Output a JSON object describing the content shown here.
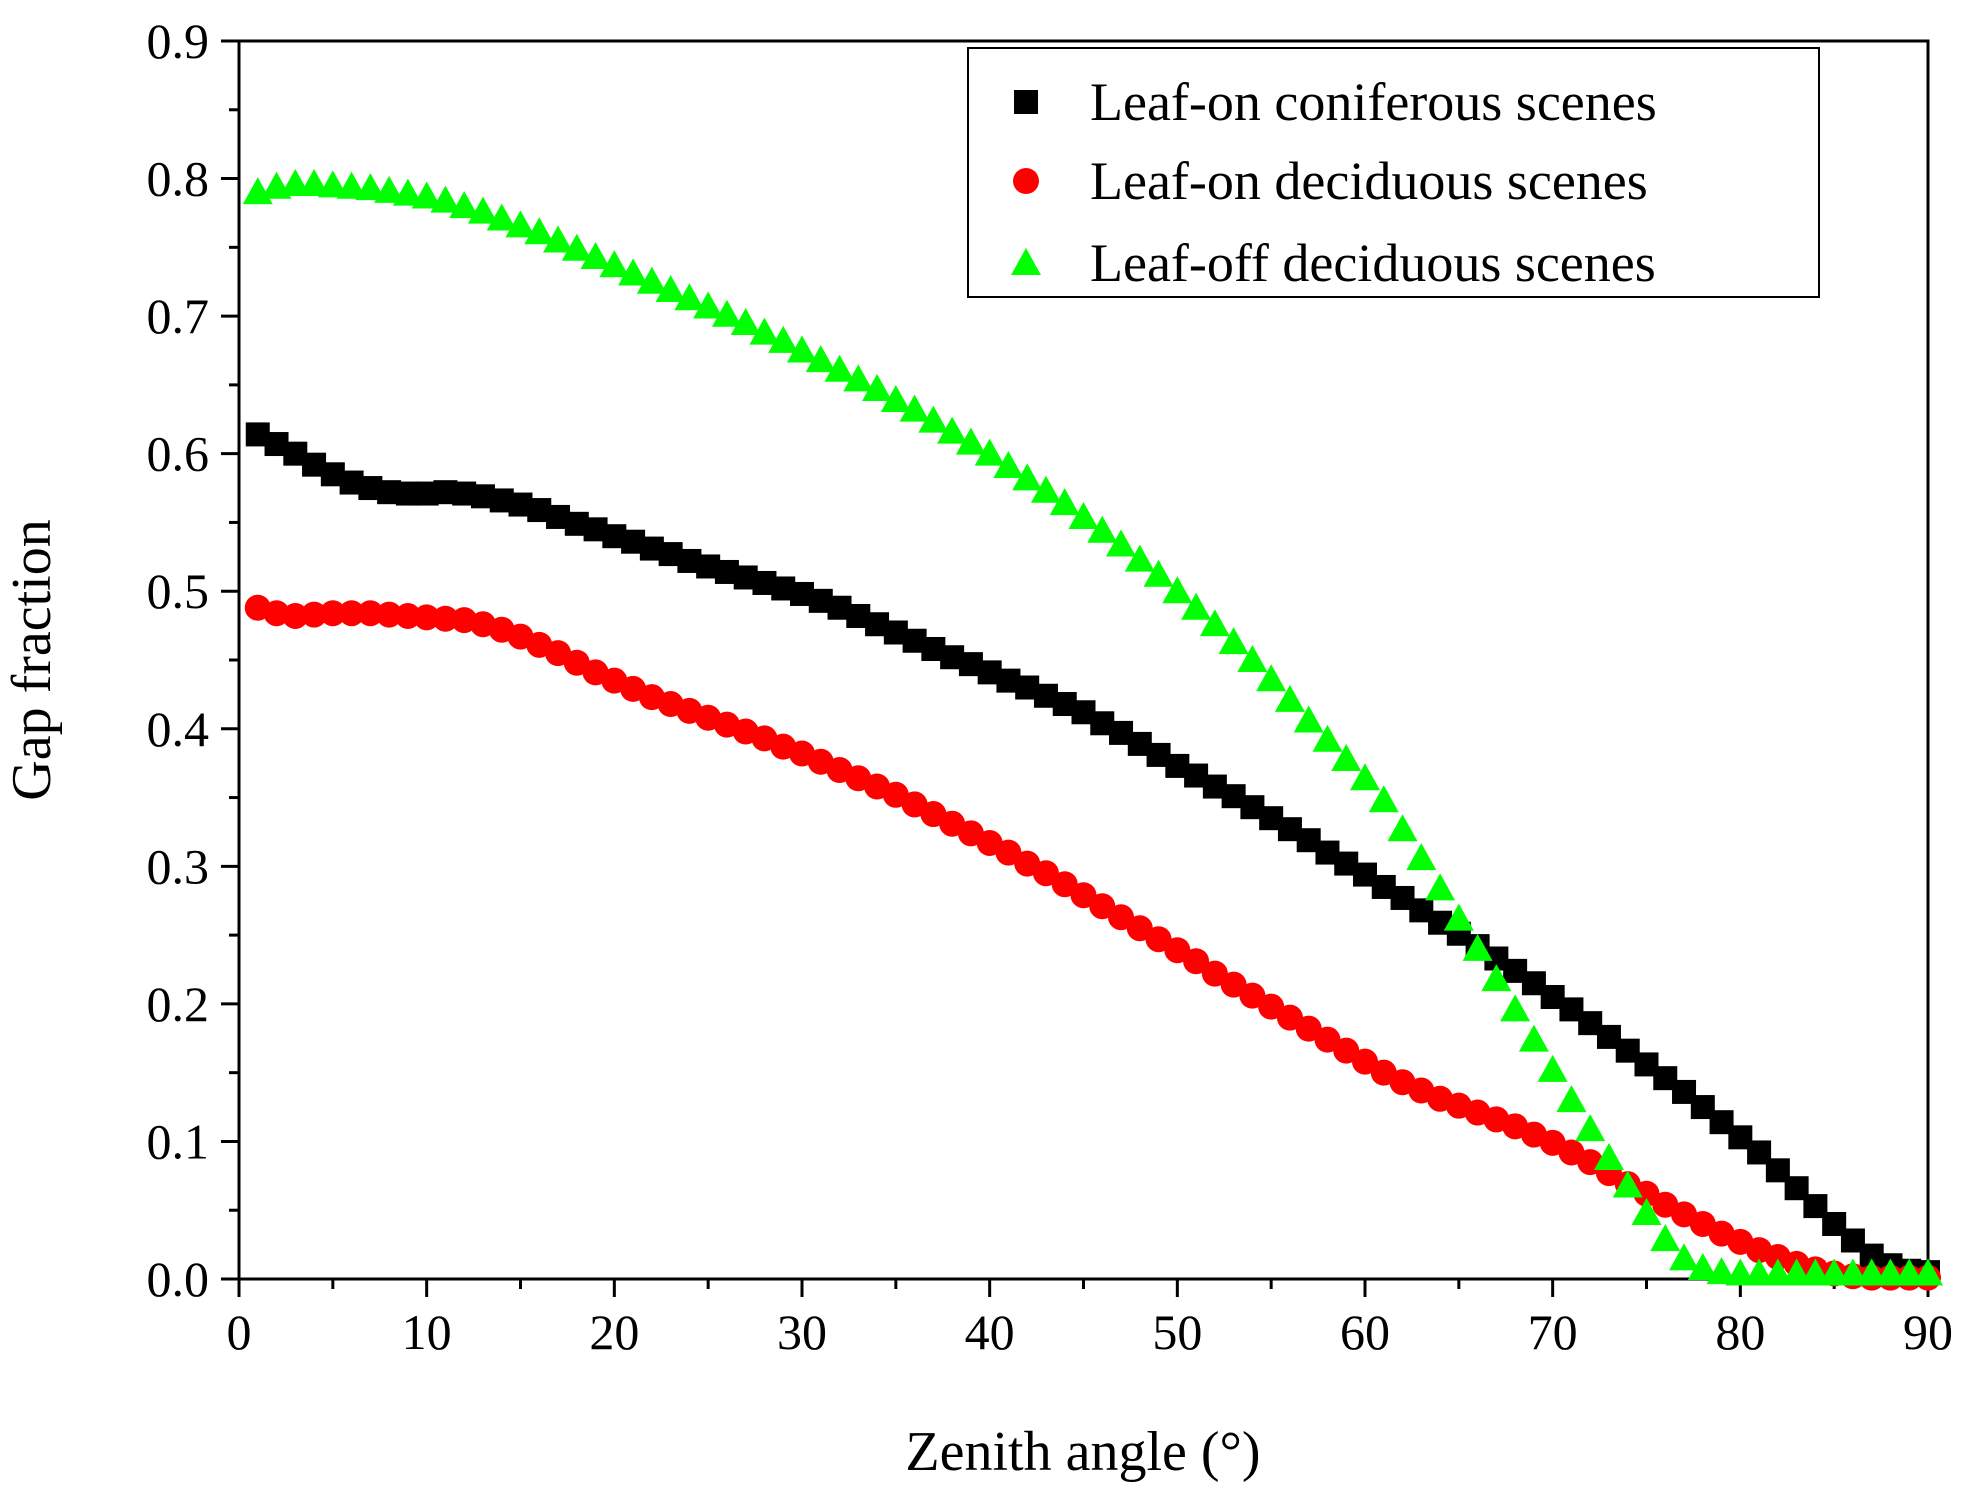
{
  "chart_data": {
    "type": "scatter",
    "title": "",
    "xlabel": "Zenith angle (°)",
    "ylabel": "Gap fraction",
    "xlim": [
      0,
      90
    ],
    "ylim": [
      0,
      0.9
    ],
    "xticks": [
      "0",
      "10",
      "20",
      "30",
      "40",
      "50",
      "60",
      "70",
      "80",
      "90"
    ],
    "yticks": [
      "0.0",
      "0.1",
      "0.2",
      "0.3",
      "0.4",
      "0.5",
      "0.6",
      "0.7",
      "0.8",
      "0.9"
    ],
    "grid": false,
    "legend_position": "top-right",
    "x": [
      1,
      2,
      3,
      4,
      5,
      6,
      7,
      8,
      9,
      10,
      11,
      12,
      13,
      14,
      15,
      16,
      17,
      18,
      19,
      20,
      21,
      22,
      23,
      24,
      25,
      26,
      27,
      28,
      29,
      30,
      31,
      32,
      33,
      34,
      35,
      36,
      37,
      38,
      39,
      40,
      41,
      42,
      43,
      44,
      45,
      46,
      47,
      48,
      49,
      50,
      51,
      52,
      53,
      54,
      55,
      56,
      57,
      58,
      59,
      60,
      61,
      62,
      63,
      64,
      65,
      66,
      67,
      68,
      69,
      70,
      71,
      72,
      73,
      74,
      75,
      76,
      77,
      78,
      79,
      80,
      81,
      82,
      83,
      84,
      85,
      86,
      87,
      88,
      89,
      90
    ],
    "series": [
      {
        "name": "Leaf-on coniferous scenes",
        "marker": "square",
        "color": "#000000",
        "values": [
          0.614,
          0.607,
          0.6,
          0.592,
          0.585,
          0.579,
          0.575,
          0.572,
          0.571,
          0.571,
          0.572,
          0.571,
          0.569,
          0.566,
          0.563,
          0.559,
          0.554,
          0.549,
          0.545,
          0.54,
          0.536,
          0.531,
          0.527,
          0.522,
          0.518,
          0.514,
          0.51,
          0.506,
          0.502,
          0.498,
          0.493,
          0.488,
          0.482,
          0.476,
          0.47,
          0.464,
          0.458,
          0.452,
          0.447,
          0.441,
          0.435,
          0.43,
          0.424,
          0.418,
          0.412,
          0.404,
          0.397,
          0.389,
          0.381,
          0.373,
          0.366,
          0.358,
          0.351,
          0.343,
          0.335,
          0.327,
          0.319,
          0.31,
          0.302,
          0.294,
          0.285,
          0.277,
          0.268,
          0.259,
          0.251,
          0.242,
          0.233,
          0.224,
          0.215,
          0.205,
          0.196,
          0.186,
          0.176,
          0.166,
          0.156,
          0.146,
          0.136,
          0.125,
          0.114,
          0.103,
          0.092,
          0.079,
          0.066,
          0.053,
          0.04,
          0.028,
          0.017,
          0.01,
          0.006,
          0.005
        ]
      },
      {
        "name": "Leaf-on deciduous scenes",
        "marker": "circle",
        "color": "#ff0000",
        "values": [
          0.488,
          0.484,
          0.482,
          0.483,
          0.484,
          0.484,
          0.484,
          0.483,
          0.482,
          0.481,
          0.48,
          0.479,
          0.476,
          0.472,
          0.467,
          0.461,
          0.455,
          0.448,
          0.441,
          0.435,
          0.429,
          0.423,
          0.418,
          0.413,
          0.408,
          0.403,
          0.398,
          0.393,
          0.387,
          0.382,
          0.376,
          0.37,
          0.364,
          0.358,
          0.352,
          0.345,
          0.338,
          0.331,
          0.324,
          0.317,
          0.31,
          0.302,
          0.295,
          0.287,
          0.279,
          0.271,
          0.263,
          0.255,
          0.247,
          0.239,
          0.231,
          0.222,
          0.214,
          0.206,
          0.198,
          0.19,
          0.182,
          0.174,
          0.166,
          0.158,
          0.15,
          0.143,
          0.137,
          0.131,
          0.126,
          0.121,
          0.116,
          0.111,
          0.105,
          0.099,
          0.092,
          0.085,
          0.077,
          0.069,
          0.062,
          0.054,
          0.047,
          0.04,
          0.033,
          0.027,
          0.021,
          0.016,
          0.011,
          0.007,
          0.004,
          0.002,
          0.001,
          0.001,
          0.001,
          0.001
        ]
      },
      {
        "name": "Leaf-off deciduous scenes",
        "marker": "triangle",
        "color": "#00ff00",
        "values": [
          0.79,
          0.794,
          0.796,
          0.796,
          0.795,
          0.794,
          0.793,
          0.791,
          0.789,
          0.787,
          0.784,
          0.78,
          0.776,
          0.771,
          0.766,
          0.761,
          0.755,
          0.749,
          0.743,
          0.737,
          0.731,
          0.725,
          0.719,
          0.713,
          0.707,
          0.701,
          0.695,
          0.688,
          0.682,
          0.675,
          0.668,
          0.661,
          0.654,
          0.647,
          0.639,
          0.632,
          0.624,
          0.616,
          0.608,
          0.6,
          0.591,
          0.582,
          0.573,
          0.564,
          0.554,
          0.544,
          0.534,
          0.523,
          0.512,
          0.5,
          0.488,
          0.476,
          0.463,
          0.45,
          0.436,
          0.421,
          0.406,
          0.392,
          0.378,
          0.364,
          0.348,
          0.327,
          0.306,
          0.284,
          0.262,
          0.24,
          0.218,
          0.196,
          0.174,
          0.152,
          0.13,
          0.109,
          0.088,
          0.068,
          0.048,
          0.029,
          0.015,
          0.008,
          0.005,
          0.004,
          0.004,
          0.004,
          0.004,
          0.004,
          0.004,
          0.004,
          0.004,
          0.004,
          0.004,
          0.004
        ]
      }
    ]
  }
}
